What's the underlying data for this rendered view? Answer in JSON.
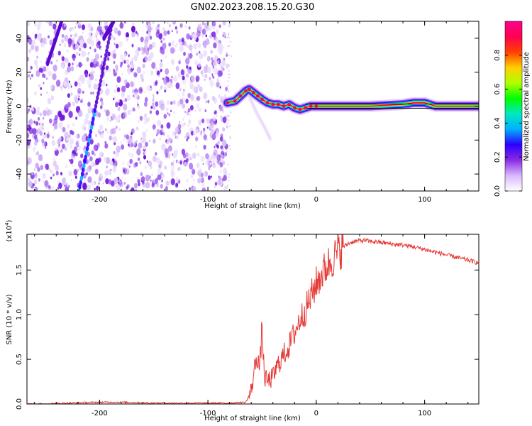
{
  "title": "GN02.2023.208.15.20.G30",
  "chart_data": [
    {
      "type": "heatmap",
      "name": "spectrogram",
      "xlabel": "Height of straight line (km)",
      "ylabel": "Frequency (Hz)",
      "xlim": [
        -267,
        150
      ],
      "ylim": [
        -50,
        50
      ],
      "xticks": [
        -200,
        -100,
        0,
        100
      ],
      "xtick_labels": [
        "-200",
        "-100",
        "0",
        "100"
      ],
      "yticks": [
        -40,
        -20,
        0,
        20,
        40
      ],
      "ytick_labels": [
        "-40",
        "-20",
        "0",
        "20",
        "40"
      ],
      "noise_region_km": [
        -267,
        -82
      ],
      "noise_streaks": [
        {
          "x0": -219,
          "y0": -50,
          "x1": -188,
          "y1": 50
        },
        {
          "x0": -196,
          "y0": 40,
          "x1": -187,
          "y1": 50
        },
        {
          "x0": -248,
          "y0": 25,
          "x1": -235,
          "y1": 50
        }
      ],
      "signal_track": {
        "x": [
          -82,
          -75,
          -70,
          -65,
          -62,
          -58,
          -54,
          -50,
          -45,
          -40,
          -35,
          -30,
          -25,
          -20,
          -15,
          -10,
          -5,
          0,
          20,
          50,
          80,
          90,
          100,
          110,
          150
        ],
        "y": [
          2,
          3,
          6,
          9,
          10,
          8,
          6,
          4,
          2,
          1,
          1,
          0,
          1,
          -1,
          -2,
          -1,
          0,
          0,
          0,
          0,
          1,
          2,
          2,
          0,
          0
        ]
      },
      "faint_tail": {
        "x": [
          -62,
          -55,
          -48,
          -42
        ],
        "y": [
          6,
          -4,
          -12,
          -20
        ]
      },
      "colorbar": {
        "label": "Normalized spectral amplitude",
        "ticks": [
          0.0,
          0.2,
          0.4,
          0.6,
          0.8
        ],
        "tick_labels": [
          "0.0",
          "0.2",
          "0.4",
          "0.6",
          "0.8"
        ],
        "range": [
          0,
          1
        ],
        "colors": [
          "#ffffff",
          "#d9b8ff",
          "#8a2be2",
          "#2b00ff",
          "#00b0ff",
          "#00e8c0",
          "#00ff00",
          "#b0ff00",
          "#ffd000",
          "#ff4000",
          "#ff0050",
          "#ff0090"
        ]
      }
    },
    {
      "type": "line",
      "name": "snr",
      "xlabel": "Height of straight line (km)",
      "ylabel": "SNR (10 * v/v)",
      "y_multiplier_label": "(x10",
      "y_multiplier_exp": "4",
      "y_multiplier_close": ")",
      "xlim": [
        -267,
        150
      ],
      "ylim": [
        0,
        1.9
      ],
      "xticks": [
        -200,
        -100,
        0,
        100
      ],
      "xtick_labels": [
        "-200",
        "-100",
        "0",
        "100"
      ],
      "yticks": [
        0.0,
        0.5,
        1.0,
        1.5
      ],
      "ytick_labels": [
        "0.0",
        "0.5",
        "1.0",
        "1.5"
      ],
      "line_color": "#e53935",
      "series": [
        {
          "name": "SNR",
          "x": [
            -267,
            -250,
            -230,
            -200,
            -180,
            -150,
            -120,
            -100,
            -80,
            -65,
            -60,
            -55,
            -52,
            -50,
            -48,
            -45,
            -40,
            -35,
            -30,
            -25,
            -20,
            -15,
            -10,
            -5,
            0,
            5,
            10,
            15,
            20,
            25,
            30,
            35,
            40,
            45,
            50,
            60,
            70,
            80,
            90,
            100,
            110,
            120,
            130,
            140,
            150
          ],
          "y": [
            0.0,
            0.0,
            0.01,
            0.02,
            0.02,
            0.01,
            0.01,
            0.01,
            0.01,
            0.02,
            0.15,
            0.55,
            0.4,
            0.9,
            0.3,
            0.25,
            0.3,
            0.45,
            0.55,
            0.65,
            0.8,
            0.95,
            1.05,
            1.2,
            1.35,
            1.45,
            1.55,
            1.62,
            1.7,
            1.76,
            1.8,
            1.82,
            1.83,
            1.83,
            1.82,
            1.81,
            1.79,
            1.78,
            1.76,
            1.73,
            1.7,
            1.67,
            1.64,
            1.61,
            1.58
          ]
        }
      ]
    }
  ]
}
